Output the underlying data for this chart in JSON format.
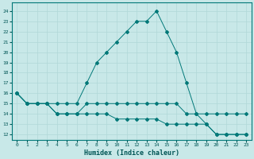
{
  "xlabel": "Humidex (Indice chaleur)",
  "ylabel": "",
  "bg_color": "#c8e8e8",
  "grid_color": "#b0d8d8",
  "line_color": "#007878",
  "xlim": [
    -0.5,
    23.5
  ],
  "ylim": [
    11.5,
    24.8
  ],
  "yticks": [
    12,
    13,
    14,
    15,
    16,
    17,
    18,
    19,
    20,
    21,
    22,
    23,
    24
  ],
  "xticks": [
    0,
    1,
    2,
    3,
    4,
    5,
    6,
    7,
    8,
    9,
    10,
    11,
    12,
    13,
    14,
    15,
    16,
    17,
    18,
    19,
    20,
    21,
    22,
    23
  ],
  "line1_x": [
    0,
    1,
    2,
    3,
    4,
    5,
    6,
    7,
    8,
    9,
    10,
    11,
    12,
    13,
    14,
    15,
    16,
    17,
    18,
    19,
    20,
    21,
    22,
    23
  ],
  "line1_y": [
    16,
    15,
    15,
    15,
    15,
    15,
    15,
    17,
    19,
    20,
    21,
    22,
    23,
    23,
    24,
    22,
    20,
    17,
    14,
    13,
    12,
    12,
    12,
    12
  ],
  "line2_x": [
    0,
    1,
    2,
    3,
    4,
    5,
    6,
    7,
    8,
    9,
    10,
    11,
    12,
    13,
    14,
    15,
    16,
    17,
    18,
    19,
    20,
    21,
    22,
    23
  ],
  "line2_y": [
    16,
    15,
    15,
    15,
    14,
    14,
    14,
    15,
    15,
    15,
    15,
    15,
    15,
    15,
    15,
    15,
    15,
    14,
    14,
    14,
    14,
    14,
    14,
    14
  ],
  "line3_x": [
    0,
    1,
    2,
    3,
    4,
    5,
    6,
    7,
    8,
    9,
    10,
    11,
    12,
    13,
    14,
    15,
    16,
    17,
    18,
    19,
    20,
    21,
    22,
    23
  ],
  "line3_y": [
    16,
    15,
    15,
    15,
    14,
    14,
    14,
    14,
    14,
    14,
    13.5,
    13.5,
    13.5,
    13.5,
    13.5,
    13,
    13,
    13,
    13,
    13,
    12,
    12,
    12,
    12
  ]
}
